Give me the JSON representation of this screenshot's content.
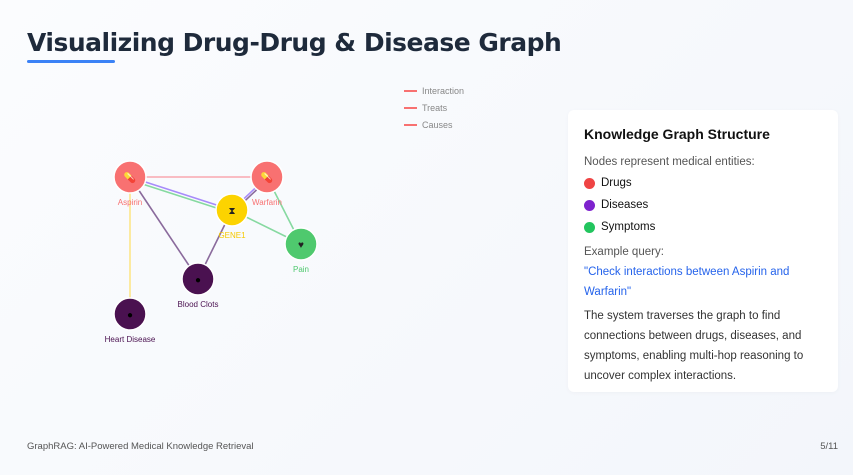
{
  "title": "Visualizing Drug-Drug & Disease Graph",
  "legend": [
    "Interaction",
    "Treats",
    "Causes"
  ],
  "graph": {
    "nodes": [
      {
        "id": "Aspirin",
        "label": "Aspirin",
        "type": "drug",
        "icon": "pills-icon",
        "color": "#f87171",
        "labelColor": "#f87171"
      },
      {
        "id": "Warfarin",
        "label": "Warfarin",
        "type": "drug",
        "icon": "pills-icon",
        "color": "#f87171",
        "labelColor": "#f87171"
      },
      {
        "id": "GENE1",
        "label": "GENE1",
        "type": "gene",
        "icon": "dna-icon",
        "color": "#fcd300",
        "labelColor": "#f5c800"
      },
      {
        "id": "Pain",
        "label": "Pain",
        "type": "symptom",
        "icon": "heart-pulse-icon",
        "color": "#4fc96e",
        "labelColor": "#4fc96e"
      },
      {
        "id": "Blood Clots",
        "label": "Blood Clots",
        "type": "disease",
        "icon": "droplet-icon",
        "color": "#4a1150",
        "labelColor": "#4a1150"
      },
      {
        "id": "Heart Disease",
        "label": "Heart Disease",
        "type": "disease",
        "icon": "droplet-icon",
        "color": "#4a1150",
        "labelColor": "#4a1150"
      }
    ],
    "edges": [
      {
        "s": "Aspirin",
        "t": "Warfarin",
        "color": "#f9a8b0"
      },
      {
        "s": "Aspirin",
        "t": "GENE1",
        "color": "#a78bfa"
      },
      {
        "s": "Aspirin",
        "t": "GENE1",
        "color": "#86d9a0"
      },
      {
        "s": "Aspirin",
        "t": "Blood Clots",
        "color": "#8a6a9c"
      },
      {
        "s": "Aspirin",
        "t": "Heart Disease",
        "color": "#fde68a"
      },
      {
        "s": "Warfarin",
        "t": "GENE1",
        "color": "#a78bfa"
      },
      {
        "s": "Warfarin",
        "t": "GENE1",
        "color": "#8a6a9c"
      },
      {
        "s": "Warfarin",
        "t": "Pain",
        "color": "#86d9a0"
      },
      {
        "s": "GENE1",
        "t": "Pain",
        "color": "#86d9a0"
      },
      {
        "s": "GENE1",
        "t": "Blood Clots",
        "color": "#8a6a9c"
      }
    ]
  },
  "card": {
    "heading": "Knowledge Graph Structure",
    "intro": "Nodes represent medical entities:",
    "items": [
      {
        "label": "Drugs",
        "color": "#ef4444"
      },
      {
        "label": "Diseases",
        "color": "#7e22ce"
      },
      {
        "label": "Symptoms",
        "color": "#22c55e"
      }
    ],
    "example_label": "Example query:",
    "query": "\"Check interactions between Aspirin and Warfarin\"",
    "description": "The system traverses the graph to find connections between drugs, diseases, and symptoms, enabling multi-hop reasoning to uncover complex interactions."
  },
  "footer": {
    "left": "GraphRAG: AI-Powered Medical Knowledge Retrieval",
    "page": "5/11"
  }
}
